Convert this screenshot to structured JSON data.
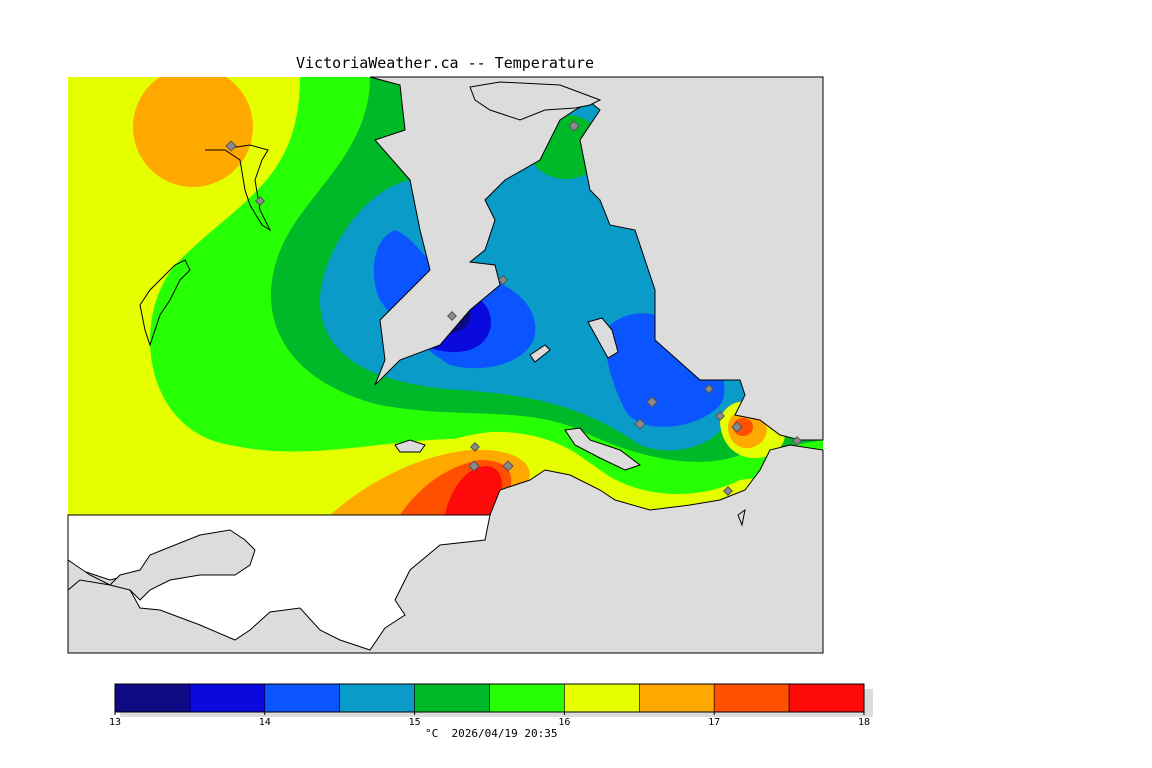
{
  "title": "VictoriaWeather.ca -- Temperature",
  "legend": {
    "ticks": [
      "13",
      "14",
      "15",
      "16",
      "17",
      "18"
    ],
    "bands": [
      {
        "from": 13.0,
        "to": 13.5,
        "color": "#0d0a83"
      },
      {
        "from": 13.5,
        "to": 14.0,
        "color": "#0a0adf"
      },
      {
        "from": 14.0,
        "to": 14.5,
        "color": "#0a55ff"
      },
      {
        "from": 14.5,
        "to": 15.0,
        "color": "#0a9bc8"
      },
      {
        "from": 15.0,
        "to": 15.5,
        "color": "#00b928"
      },
      {
        "from": 15.5,
        "to": 16.0,
        "color": "#27ff05"
      },
      {
        "from": 16.0,
        "to": 16.5,
        "color": "#e5ff00"
      },
      {
        "from": 16.5,
        "to": 17.0,
        "color": "#ffa800"
      },
      {
        "from": 17.0,
        "to": 17.5,
        "color": "#ff5000"
      },
      {
        "from": 17.5,
        "to": 18.0,
        "color": "#ff0a0a"
      }
    ],
    "caption": "°C  2026/04/19 20:35"
  },
  "colors": {
    "land_gray": "#dcdcdc",
    "station_marker": "#8a8a8a",
    "coast_line": "#000000"
  }
}
